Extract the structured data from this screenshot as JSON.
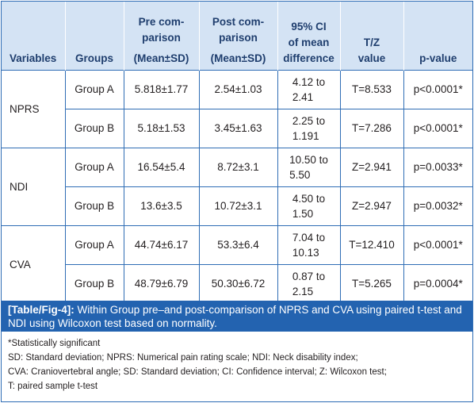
{
  "headers": {
    "variables": "Variables",
    "groups": "Groups",
    "pre_line1": "Pre com-",
    "pre_line2": "parison",
    "pre_line3": "(Mean±SD)",
    "post_line1": "Post com-",
    "post_line2": "parison",
    "post_line3": "(Mean±SD)",
    "ci_line1": "95% CI",
    "ci_line2": "of mean",
    "ci_line3": "difference",
    "tz_line1": "T/Z",
    "tz_line2": "value",
    "p": "p-value"
  },
  "rows": [
    {
      "variable": "NPRS",
      "group": "Group A",
      "pre": "5.818±1.77",
      "post": "2.54±1.03",
      "ci_a": "4.12 to",
      "ci_b": "2.41",
      "tz": "T=8.533",
      "p": "p<0.0001*"
    },
    {
      "variable": "",
      "group": "Group B",
      "pre": "5.18±1.53",
      "post": "3.45±1.63",
      "ci_a": "2.25 to",
      "ci_b": "1.191",
      "tz": "T=7.286",
      "p": "p<0.0001*"
    },
    {
      "variable": "NDI",
      "group": "Group A",
      "pre": "16.54±5.4",
      "post": "8.72±3.1",
      "ci_a": "10.50 to",
      "ci_b": "5.50",
      "tz": "Z=2.941",
      "p": "p=0.0033*"
    },
    {
      "variable": "",
      "group": "Group B",
      "pre": "13.6±3.5",
      "post": "10.72±3.1",
      "ci_a": "4.50 to",
      "ci_b": "1.50",
      "tz": "Z=2.947",
      "p": "p=0.0032*"
    },
    {
      "variable": "CVA",
      "group": "Group A",
      "pre": "44.74±6.17",
      "post": "53.3±6.4",
      "ci_a": "7.04 to",
      "ci_b": "10.13",
      "tz": "T=12.410",
      "p": "p<0.0001*"
    },
    {
      "variable": "",
      "group": "Group B",
      "pre": "48.79±6.79",
      "post": "50.30±6.72",
      "ci_a": "0.87 to",
      "ci_b": "2.15",
      "tz": "T=5.265",
      "p": "p=0.0004*"
    }
  ],
  "caption": {
    "label": "[Table/Fig-4]:",
    "text": " Within Group pre–and post-comparison of NPRS and CVA using paired t-test and NDI using Wilcoxon test based on normality."
  },
  "notes": {
    "line1": "*Statistically significant",
    "line2": "SD: Standard deviation; NPRS: Numerical pain rating scale; NDI: Neck disability index;",
    "line3": "CVA: Craniovertebral angle; SD: Standard deviation; CI: Confidence interval; Z: Wilcoxon test;",
    "line4": "T: paired sample t-test"
  }
}
